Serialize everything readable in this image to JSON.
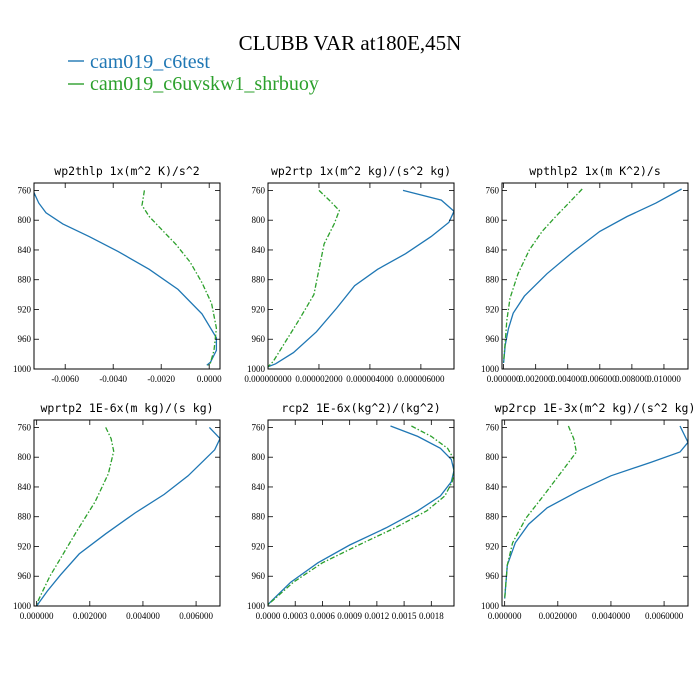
{
  "figure": {
    "title": "CLUBB VAR at180E,45N",
    "legend": [
      {
        "label": "cam019_c6test",
        "color": "#1f77b4",
        "dash": "solid"
      },
      {
        "label": "cam019_c6uvskw1_shrbuoy",
        "color": "#2ca02c",
        "dash": "dashdot"
      }
    ]
  },
  "chart_data": [
    {
      "type": "line",
      "title": "wp2thlp  1x(m^2 K)/s^2",
      "xlabel": "",
      "ylabel": "",
      "xlim": [
        -0.0073,
        0.00045
      ],
      "ylim": [
        1000,
        750
      ],
      "xticks": [
        -0.006,
        -0.004,
        -0.002,
        0.0
      ],
      "xtick_labels": [
        "-0.0060",
        "-0.0040",
        "-0.0020",
        "0.0000"
      ],
      "yticks": [
        760,
        800,
        840,
        880,
        920,
        960,
        1000
      ],
      "series": [
        {
          "name": "cam019_c6test",
          "color": "#1f77b4",
          "dash": "solid",
          "points": [
            [
              -0.0073,
              763
            ],
            [
              -0.0071,
              777
            ],
            [
              -0.0068,
              790
            ],
            [
              -0.0061,
              805
            ],
            [
              -0.005,
              822
            ],
            [
              -0.0038,
              842
            ],
            [
              -0.0025,
              866
            ],
            [
              -0.0013,
              893
            ],
            [
              -0.0003,
              926
            ],
            [
              0.0003,
              958
            ],
            [
              0.0003,
              975
            ],
            [
              5e-05,
              991
            ],
            [
              -0.0001,
              995
            ]
          ]
        },
        {
          "name": "cam019_c6uvskw1_shrbuoy",
          "color": "#2ca02c",
          "dash": "dashdot",
          "points": [
            [
              -0.0027,
              760
            ],
            [
              -0.0028,
              780
            ],
            [
              -0.0025,
              795
            ],
            [
              -0.002,
              812
            ],
            [
              -0.0014,
              832
            ],
            [
              -0.0008,
              856
            ],
            [
              -0.0003,
              884
            ],
            [
              0.0001,
              912
            ],
            [
              0.0003,
              945
            ],
            [
              0.0002,
              975
            ],
            [
              5e-05,
              992
            ],
            [
              -5e-05,
              995
            ]
          ]
        }
      ]
    },
    {
      "type": "line",
      "title": "wp2rtp  1x(m^2 kg)/(s^2 kg)",
      "xlabel": "",
      "ylabel": "",
      "xlim": [
        0.0,
        7.3e-06
      ],
      "ylim": [
        1000,
        750
      ],
      "xticks": [
        0.0,
        2e-06,
        4e-06,
        6e-06
      ],
      "xtick_labels": [
        "0.000000000",
        "0.000002000",
        "0.000004000",
        "0.000006000"
      ],
      "yticks": [
        760,
        800,
        840,
        880,
        920,
        960,
        1000
      ],
      "series": [
        {
          "name": "cam019_c6test",
          "color": "#1f77b4",
          "dash": "solid",
          "points": [
            [
              5.3e-06,
              760
            ],
            [
              6.8e-06,
              773
            ],
            [
              7.3e-06,
              788
            ],
            [
              7.1e-06,
              803
            ],
            [
              6.4e-06,
              822
            ],
            [
              5.4e-06,
              845
            ],
            [
              4.3e-06,
              866
            ],
            [
              3.4e-06,
              888
            ],
            [
              2.7e-06,
              918
            ],
            [
              1.9e-06,
              950
            ],
            [
              1e-06,
              978
            ],
            [
              3e-07,
              993
            ],
            [
              0.0,
              997
            ]
          ]
        },
        {
          "name": "cam019_c6uvskw1_shrbuoy",
          "color": "#2ca02c",
          "dash": "dashdot",
          "points": [
            [
              2e-06,
              760
            ],
            [
              2.4e-06,
              773
            ],
            [
              2.8e-06,
              787
            ],
            [
              2.6e-06,
              805
            ],
            [
              2.2e-06,
              832
            ],
            [
              2e-06,
              866
            ],
            [
              1.8e-06,
              900
            ],
            [
              1.2e-06,
              935
            ],
            [
              6e-07,
              968
            ],
            [
              2e-07,
              990
            ],
            [
              0.0,
              997
            ]
          ]
        }
      ]
    },
    {
      "type": "line",
      "title": "wpthlp2  1x(m K^2)/s",
      "xlabel": "",
      "ylabel": "",
      "xlim": [
        -0.0001,
        0.0115
      ],
      "ylim": [
        1000,
        750
      ],
      "xticks": [
        0.0,
        0.002,
        0.004,
        0.006,
        0.008,
        0.01
      ],
      "xtick_labels": [
        "0.000000",
        "0.002000",
        "0.004000",
        "0.006000",
        "0.008000",
        "0.010000"
      ],
      "yticks": [
        760,
        800,
        840,
        880,
        920,
        960,
        1000
      ],
      "series": [
        {
          "name": "cam019_c6test",
          "color": "#1f77b4",
          "dash": "solid",
          "points": [
            [
              0.0111,
              758
            ],
            [
              0.0095,
              777
            ],
            [
              0.0077,
              795
            ],
            [
              0.006,
              815
            ],
            [
              0.0043,
              843
            ],
            [
              0.0027,
              872
            ],
            [
              0.0013,
              902
            ],
            [
              0.0006,
              925
            ],
            [
              0.0003,
              946
            ],
            [
              0.0001,
              968
            ],
            [
              0.0,
              992
            ]
          ]
        },
        {
          "name": "cam019_c6uvskw1_shrbuoy",
          "color": "#2ca02c",
          "dash": "dashdot",
          "points": [
            [
              0.0049,
              758
            ],
            [
              0.0042,
              774
            ],
            [
              0.0033,
              794
            ],
            [
              0.0024,
              815
            ],
            [
              0.0016,
              840
            ],
            [
              0.0009,
              872
            ],
            [
              0.0004,
              905
            ],
            [
              0.0002,
              935
            ],
            [
              0.0001,
              964
            ],
            [
              0.0,
              990
            ]
          ]
        }
      ]
    },
    {
      "type": "line",
      "title": "wprtp2  1E-6x(m kg)/(s kg)",
      "xlabel": "",
      "ylabel": "",
      "xlim": [
        -0.0001,
        0.0069
      ],
      "ylim": [
        1000,
        750
      ],
      "xticks": [
        0.0,
        0.002,
        0.004,
        0.006
      ],
      "xtick_labels": [
        "0.000000",
        "0.002000",
        "0.004000",
        "0.006000"
      ],
      "yticks": [
        760,
        800,
        840,
        880,
        920,
        960,
        1000
      ],
      "series": [
        {
          "name": "cam019_c6test",
          "color": "#1f77b4",
          "dash": "solid",
          "points": [
            [
              0.0065,
              760
            ],
            [
              0.0069,
              775
            ],
            [
              0.0067,
              790
            ],
            [
              0.0063,
              804
            ],
            [
              0.0057,
              825
            ],
            [
              0.0048,
              850
            ],
            [
              0.0037,
              875
            ],
            [
              0.0026,
              903
            ],
            [
              0.0016,
              930
            ],
            [
              0.0009,
              958
            ],
            [
              0.0004,
              980
            ],
            [
              0.0001,
              995
            ],
            [
              0.0,
              1000
            ]
          ]
        },
        {
          "name": "cam019_c6uvskw1_shrbuoy",
          "color": "#2ca02c",
          "dash": "dashdot",
          "points": [
            [
              0.0026,
              760
            ],
            [
              0.0028,
              775
            ],
            [
              0.0029,
              792
            ],
            [
              0.0027,
              822
            ],
            [
              0.0022,
              860
            ],
            [
              0.0015,
              900
            ],
            [
              0.001,
              930
            ],
            [
              0.0005,
              960
            ],
            [
              0.0002,
              982
            ],
            [
              0.0,
              997
            ]
          ]
        }
      ]
    },
    {
      "type": "line",
      "title": "rcp2  1E-6x(kg^2)/(kg^2)",
      "xlabel": "",
      "ylabel": "",
      "xlim": [
        0.0,
        0.00205
      ],
      "ylim": [
        1000,
        750
      ],
      "xticks": [
        0.0,
        0.0003,
        0.0006,
        0.0009,
        0.0012,
        0.0015,
        0.0018
      ],
      "xtick_labels": [
        "0.0000",
        "0.0003",
        "0.0006",
        "0.0009",
        "0.0012",
        "0.0015",
        "0.0018"
      ],
      "yticks": [
        760,
        800,
        840,
        880,
        920,
        960,
        1000
      ],
      "series": [
        {
          "name": "cam019_c6test",
          "color": "#1f77b4",
          "dash": "solid",
          "points": [
            [
              0.00135,
              758
            ],
            [
              0.00165,
              772
            ],
            [
              0.0019,
              788
            ],
            [
              0.00202,
              803
            ],
            [
              0.00205,
              818
            ],
            [
              0.00202,
              833
            ],
            [
              0.0019,
              852
            ],
            [
              0.00165,
              872
            ],
            [
              0.0013,
              895
            ],
            [
              0.0009,
              918
            ],
            [
              0.00055,
              942
            ],
            [
              0.00025,
              968
            ],
            [
              5e-05,
              992
            ],
            [
              0.0,
              998
            ]
          ]
        },
        {
          "name": "cam019_c6uvskw1_shrbuoy",
          "color": "#2ca02c",
          "dash": "dashdot",
          "points": [
            [
              0.00158,
              758
            ],
            [
              0.0018,
              772
            ],
            [
              0.00198,
              788
            ],
            [
              0.00205,
              803
            ],
            [
              0.00205,
              818
            ],
            [
              0.00203,
              833
            ],
            [
              0.00195,
              852
            ],
            [
              0.00175,
              872
            ],
            [
              0.0014,
              895
            ],
            [
              0.001,
              918
            ],
            [
              0.0006,
              942
            ],
            [
              0.00028,
              968
            ],
            [
              6e-05,
              992
            ],
            [
              0.0,
              998
            ]
          ]
        }
      ]
    },
    {
      "type": "line",
      "title": "wp2rcp  1E-3x(m^2 kg)/(s^2 kg)",
      "xlabel": "",
      "ylabel": "",
      "xlim": [
        -0.0001,
        0.0069
      ],
      "ylim": [
        1000,
        750
      ],
      "xticks": [
        0.0,
        0.002,
        0.004,
        0.006
      ],
      "xtick_labels": [
        "0.000000",
        "0.0020000",
        "0.0040000",
        "0.0060000"
      ],
      "yticks": [
        760,
        800,
        840,
        880,
        920,
        960,
        1000
      ],
      "series": [
        {
          "name": "cam019_c6test",
          "color": "#1f77b4",
          "dash": "solid",
          "points": [
            [
              0.0066,
              758
            ],
            [
              0.0069,
              780
            ],
            [
              0.0066,
              793
            ],
            [
              0.0055,
              807
            ],
            [
              0.004,
              825
            ],
            [
              0.0028,
              845
            ],
            [
              0.0016,
              868
            ],
            [
              0.0009,
              890
            ],
            [
              0.0004,
              915
            ],
            [
              0.0001,
              945
            ],
            [
              0.0,
              990
            ]
          ]
        },
        {
          "name": "cam019_c6uvskw1_shrbuoy",
          "color": "#2ca02c",
          "dash": "dashdot",
          "points": [
            [
              0.0024,
              758
            ],
            [
              0.0026,
              775
            ],
            [
              0.0027,
              793
            ],
            [
              0.0022,
              817
            ],
            [
              0.0015,
              850
            ],
            [
              0.0008,
              882
            ],
            [
              0.0003,
              915
            ],
            [
              0.0001,
              945
            ],
            [
              0.0,
              990
            ]
          ]
        }
      ]
    }
  ]
}
